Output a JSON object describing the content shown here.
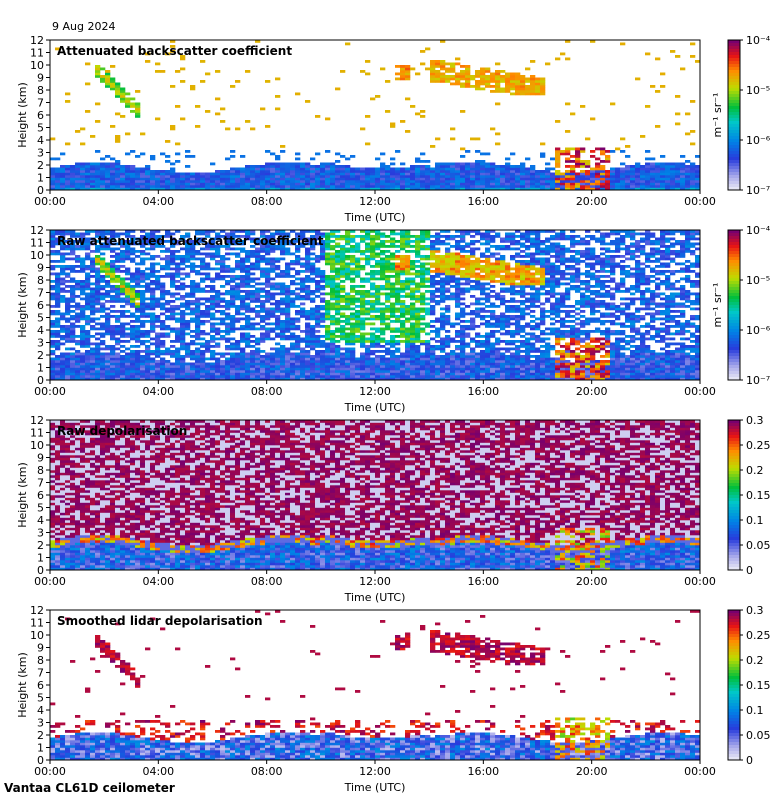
{
  "date": "9 Aug 2024",
  "footer": "Vantaa CL61D ceilometer",
  "chart_data": [
    {
      "type": "heatmap",
      "title": "Attenuated backscatter coefficient",
      "xlabel": "Time (UTC)",
      "ylabel": "Height (km)",
      "x_ticks": [
        "00:00",
        "04:00",
        "08:00",
        "12:00",
        "16:00",
        "20:00",
        "00:00"
      ],
      "y_ticks": [
        "0",
        "1",
        "2",
        "3",
        "4",
        "5",
        "6",
        "7",
        "8",
        "9",
        "10",
        "11",
        "12"
      ],
      "ylim": [
        0,
        12
      ],
      "xlim_hours": [
        0,
        24
      ],
      "colorbar": {
        "scale": "log",
        "unit": "m⁻¹ sr⁻¹",
        "ticks": [
          "10⁻⁴",
          "10⁻⁵",
          "10⁻⁶",
          "10⁻⁷"
        ]
      },
      "style": "att"
    },
    {
      "type": "heatmap",
      "title": "Raw attenuated backscatter coefficient",
      "xlabel": "Time (UTC)",
      "ylabel": "Height (km)",
      "x_ticks": [
        "00:00",
        "04:00",
        "08:00",
        "12:00",
        "16:00",
        "20:00",
        "00:00"
      ],
      "y_ticks": [
        "0",
        "1",
        "2",
        "3",
        "4",
        "5",
        "6",
        "7",
        "8",
        "9",
        "10",
        "11",
        "12"
      ],
      "ylim": [
        0,
        12
      ],
      "xlim_hours": [
        0,
        24
      ],
      "colorbar": {
        "scale": "log",
        "unit": "m⁻¹ sr⁻¹",
        "ticks": [
          "10⁻⁴",
          "10⁻⁵",
          "10⁻⁶",
          "10⁻⁷"
        ]
      },
      "style": "raw"
    },
    {
      "type": "heatmap",
      "title": "Raw depolarisation",
      "xlabel": "Time (UTC)",
      "ylabel": "Height (km)",
      "x_ticks": [
        "00:00",
        "04:00",
        "08:00",
        "12:00",
        "16:00",
        "20:00",
        "00:00"
      ],
      "y_ticks": [
        "0",
        "1",
        "2",
        "3",
        "4",
        "5",
        "6",
        "7",
        "8",
        "9",
        "10",
        "11",
        "12"
      ],
      "ylim": [
        0,
        12
      ],
      "xlim_hours": [
        0,
        24
      ],
      "colorbar": {
        "scale": "linear",
        "unit": "",
        "ticks": [
          "0.3",
          "0.25",
          "0.2",
          "0.15",
          "0.1",
          "0.05",
          "0"
        ]
      },
      "style": "rawdep"
    },
    {
      "type": "heatmap",
      "title": "Smoothed lidar depolarisation",
      "xlabel": "Time (UTC)",
      "ylabel": "Height (km)",
      "x_ticks": [
        "00:00",
        "04:00",
        "08:00",
        "12:00",
        "16:00",
        "20:00",
        "00:00"
      ],
      "y_ticks": [
        "0",
        "1",
        "2",
        "3",
        "4",
        "5",
        "6",
        "7",
        "8",
        "9",
        "10",
        "11",
        "12"
      ],
      "ylim": [
        0,
        12
      ],
      "xlim_hours": [
        0,
        24
      ],
      "colorbar": {
        "scale": "linear",
        "unit": "",
        "ticks": [
          "0.3",
          "0.25",
          "0.2",
          "0.15",
          "0.1",
          "0.05",
          "0"
        ]
      },
      "style": "smdep"
    }
  ]
}
